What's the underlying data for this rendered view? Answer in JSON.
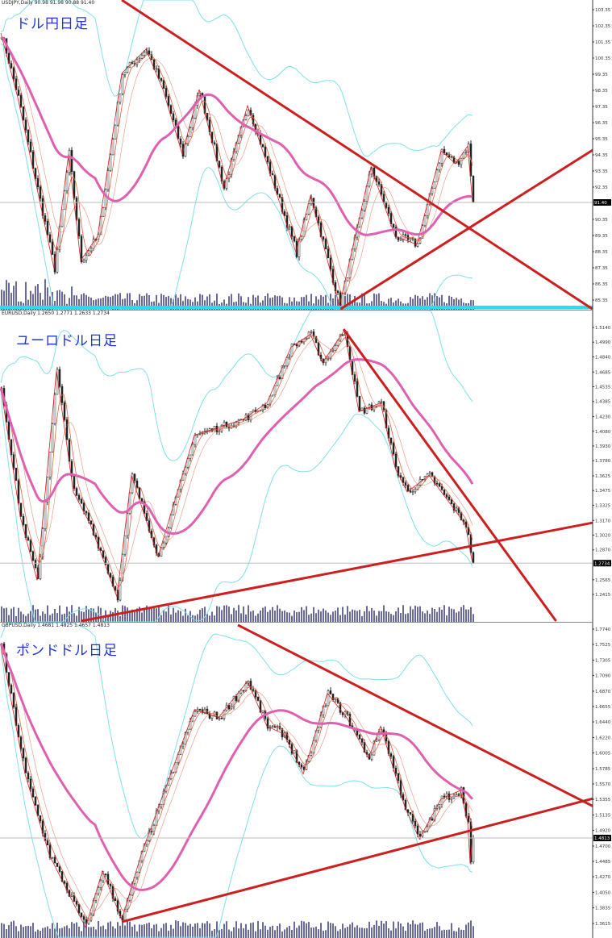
{
  "colors": {
    "candle": "#222222",
    "ma_long": "#e060b0",
    "ma_short": "#e06040",
    "zigzag": "#cc2222",
    "bands": "#7fe0e8",
    "trend": "#cc1f1f",
    "volume": "#6a6a9a",
    "support": "#22e0f0",
    "price_box": "#000000"
  },
  "chart_data": [
    {
      "type": "candlestick",
      "symbol_header": "USDJPY,Daily  90.98 91.98 90.88 91.40",
      "title": "ドル円日足",
      "current_price": "91.40",
      "yticks": [
        "103.35",
        "102.35",
        "101.35",
        "100.35",
        "99.35",
        "98.35",
        "97.35",
        "96.35",
        "95.35",
        "94.35",
        "93.35",
        "92.35",
        "90.35",
        "89.35",
        "88.35",
        "87.35",
        "86.35",
        "85.35"
      ],
      "ylim": [
        84.35,
        103.35
      ],
      "waypoints": [
        [
          0,
          101.9
        ],
        [
          7,
          97.9
        ],
        [
          22,
          87.3
        ],
        [
          28,
          94.4
        ],
        [
          33,
          87.8
        ],
        [
          40,
          89.3
        ],
        [
          50,
          99.4
        ],
        [
          60,
          100.9
        ],
        [
          67,
          98.4
        ],
        [
          75,
          94.4
        ],
        [
          82,
          98.4
        ],
        [
          92,
          92.3
        ],
        [
          102,
          97.4
        ],
        [
          110,
          93.8
        ],
        [
          122,
          88.3
        ],
        [
          128,
          91.8
        ],
        [
          140,
          85.0
        ],
        [
          153,
          93.6
        ],
        [
          163,
          89.3
        ],
        [
          172,
          88.8
        ],
        [
          182,
          94.6
        ],
        [
          188,
          93.8
        ],
        [
          193,
          94.9
        ],
        [
          195,
          91.4
        ]
      ],
      "trendlines": [
        [
          [
            50,
            103.95
          ],
          [
            245,
            84.75
          ]
        ],
        [
          [
            140,
            84.75
          ],
          [
            253,
            95.4
          ]
        ]
      ],
      "support_level": 84.9
    },
    {
      "type": "candlestick",
      "symbol_header": "EURUSD,Daily  1.2650 1.2771 1.2633 1.2734",
      "title": "ユーロドル日足",
      "current_price": "1.2734",
      "yticks": [
        "1.5140",
        "1.4990",
        "1.4840",
        "1.4685",
        "1.4535",
        "1.4385",
        "1.4230",
        "1.4080",
        "1.3930",
        "1.3780",
        "1.3625",
        "1.3475",
        "1.3325",
        "1.3170",
        "1.3020",
        "1.2870",
        "1.2565",
        "1.2415"
      ],
      "ylim": [
        1.2415,
        1.514
      ],
      "waypoints": [
        [
          0,
          1.453
        ],
        [
          8,
          1.321
        ],
        [
          15,
          1.256
        ],
        [
          23,
          1.47
        ],
        [
          30,
          1.346
        ],
        [
          37,
          1.313
        ],
        [
          48,
          1.239
        ],
        [
          54,
          1.363
        ],
        [
          65,
          1.28
        ],
        [
          80,
          1.404
        ],
        [
          100,
          1.42
        ],
        [
          110,
          1.437
        ],
        [
          120,
          1.494
        ],
        [
          128,
          1.507
        ],
        [
          133,
          1.478
        ],
        [
          142,
          1.511
        ],
        [
          148,
          1.428
        ],
        [
          157,
          1.437
        ],
        [
          163,
          1.371
        ],
        [
          168,
          1.346
        ],
        [
          177,
          1.363
        ],
        [
          187,
          1.33
        ],
        [
          192,
          1.313
        ],
        [
          195,
          1.2734
        ]
      ],
      "trendlines": [
        [
          [
            141.7,
            1.5123
          ],
          [
            230,
            1.2128
          ]
        ],
        [
          [
            30,
            1.2128
          ],
          [
            245,
            1.3148
          ]
        ]
      ]
    },
    {
      "type": "candlestick",
      "symbol_header": "GBPUSD,Daily  1.4681 1.4825 1.4657 1.4813",
      "title": "ポンドドル日足",
      "current_price": "1.4813",
      "yticks": [
        "1.7740",
        "1.7525",
        "1.7305",
        "1.7090",
        "1.6870",
        "1.6655",
        "1.6440",
        "1.6220",
        "1.6005",
        "1.5785",
        "1.5570",
        "1.5355",
        "1.5135",
        "1.4920",
        "1.4700",
        "1.4485",
        "1.4270",
        "1.4050",
        "1.3835",
        "1.3615"
      ],
      "ylim": [
        1.3615,
        1.774
      ],
      "waypoints": [
        [
          0,
          1.751
        ],
        [
          10,
          1.571
        ],
        [
          20,
          1.458
        ],
        [
          35,
          1.356
        ],
        [
          42,
          1.435
        ],
        [
          50,
          1.367
        ],
        [
          58,
          1.458
        ],
        [
          80,
          1.661
        ],
        [
          90,
          1.65
        ],
        [
          102,
          1.701
        ],
        [
          110,
          1.638
        ],
        [
          117,
          1.627
        ],
        [
          125,
          1.571
        ],
        [
          135,
          1.684
        ],
        [
          143,
          1.65
        ],
        [
          152,
          1.593
        ],
        [
          157,
          1.638
        ],
        [
          167,
          1.525
        ],
        [
          173,
          1.48
        ],
        [
          182,
          1.536
        ],
        [
          190,
          1.548
        ],
        [
          193,
          1.503
        ],
        [
          194,
          1.446
        ],
        [
          195,
          1.4813
        ]
      ],
      "trendlines": [
        [
          [
            98,
            1.7797
          ],
          [
            245,
            1.5254
          ]
        ],
        [
          [
            50,
            1.3638
          ],
          [
            245,
            1.5367
          ]
        ]
      ]
    }
  ]
}
